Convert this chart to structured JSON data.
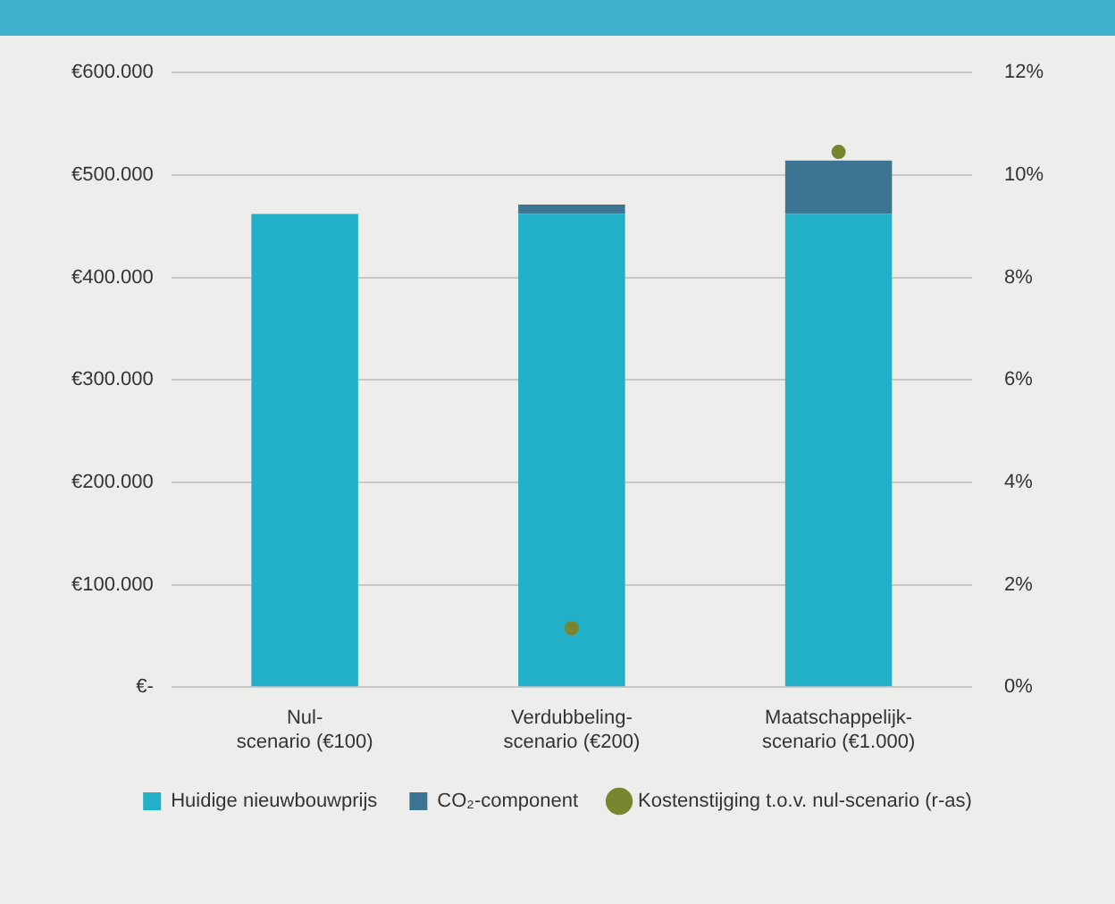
{
  "chart_data": {
    "type": "bar",
    "stacked": true,
    "categories": [
      "Nul-scenario (€100)",
      "Verdubbeling-scenario (€200)",
      "Maatschappelijk-scenario (€1.000)"
    ],
    "series": [
      {
        "name": "Huidige nieuwbouwprijs",
        "color": "#21b0c8",
        "values": [
          462000,
          462000,
          462000
        ]
      },
      {
        "name": "CO₂-component",
        "color": "#3c7591",
        "values": [
          0,
          9000,
          52000
        ]
      },
      {
        "name": "Kostenstijging t.o.v. nul-scenario (r-as)",
        "type": "scatter",
        "axis": "y2",
        "color": "#7a8530",
        "x": [
          "Nul-scenario (€100)",
          "Verdubbeling-scenario (€200)",
          "Maatschappelijk-scenario (€1.000)"
        ],
        "values": [
          null,
          1.15,
          10.45
        ]
      }
    ],
    "ylim": [
      0,
      600000
    ],
    "yticks": [
      {
        "value": 0,
        "label": "€-"
      },
      {
        "value": 100000,
        "label": "€100.000"
      },
      {
        "value": 200000,
        "label": "€200.000"
      },
      {
        "value": 300000,
        "label": "€300.000"
      },
      {
        "value": 400000,
        "label": "€400.000"
      },
      {
        "value": 500000,
        "label": "€500.000"
      },
      {
        "value": 600000,
        "label": "€600.000"
      }
    ],
    "y2lim": [
      0,
      12
    ],
    "y2ticks": [
      {
        "value": 0,
        "label": "0%"
      },
      {
        "value": 2,
        "label": "2%"
      },
      {
        "value": 4,
        "label": "4%"
      },
      {
        "value": 6,
        "label": "6%"
      },
      {
        "value": 8,
        "label": "8%"
      },
      {
        "value": 10,
        "label": "10%"
      },
      {
        "value": 12,
        "label": "12%"
      }
    ],
    "grid": "y",
    "legend": "bottom",
    "marker": "circle"
  }
}
